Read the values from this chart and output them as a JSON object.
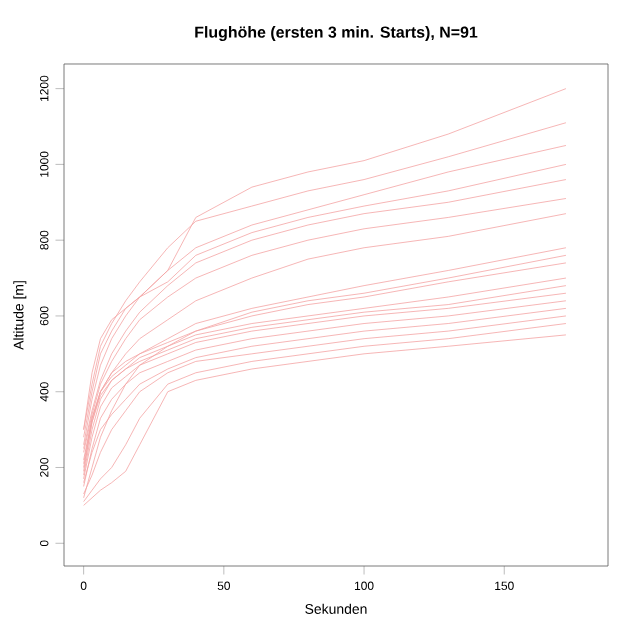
{
  "chart_data": {
    "type": "line",
    "title": "Flughöhe (ersten 3 min. Starts), N=91",
    "xlabel": "Sekunden",
    "ylabel": "Altitude [m]",
    "x": [
      0,
      3,
      6,
      10,
      15,
      20,
      30,
      40,
      60,
      80,
      100,
      130,
      172
    ],
    "xlim": [
      -7,
      187
    ],
    "ylim": [
      -60,
      1265
    ],
    "xticks": [
      0,
      50,
      100,
      150
    ],
    "yticks": [
      0,
      200,
      400,
      600,
      800,
      1000,
      1200
    ],
    "grid": false,
    "marker": "none",
    "line_style": "solid",
    "series": [
      {
        "color": "#f4a3a3",
        "values": [
          280,
          400,
          500,
          560,
          620,
          650,
          720,
          860,
          940,
          980,
          1010,
          1080,
          1200
        ]
      },
      {
        "color": "#f4a3a3",
        "values": [
          300,
          420,
          520,
          580,
          640,
          690,
          780,
          850,
          890,
          930,
          960,
          1020,
          1110
        ]
      },
      {
        "color": "#f4a3a3",
        "values": [
          260,
          380,
          470,
          540,
          600,
          650,
          720,
          780,
          840,
          880,
          920,
          980,
          1050
        ]
      },
      {
        "color": "#f4a3a3",
        "values": [
          250,
          350,
          430,
          500,
          560,
          610,
          680,
          740,
          800,
          840,
          870,
          900,
          960
        ]
      },
      {
        "color": "#f4a3a3",
        "values": [
          240,
          340,
          420,
          480,
          540,
          590,
          650,
          700,
          760,
          800,
          830,
          860,
          910
        ]
      },
      {
        "color": "#f4a3a3",
        "values": [
          220,
          330,
          400,
          450,
          500,
          540,
          590,
          640,
          700,
          750,
          780,
          810,
          870
        ]
      },
      {
        "color": "#f4a3a3",
        "values": [
          200,
          320,
          400,
          450,
          480,
          500,
          540,
          580,
          620,
          650,
          680,
          720,
          780
        ]
      },
      {
        "color": "#f4a3a3",
        "values": [
          210,
          330,
          400,
          440,
          470,
          500,
          530,
          560,
          600,
          630,
          650,
          690,
          740
        ]
      },
      {
        "color": "#f4a3a3",
        "values": [
          180,
          300,
          380,
          430,
          460,
          490,
          520,
          550,
          580,
          600,
          620,
          650,
          700
        ]
      },
      {
        "color": "#f4a3a3",
        "values": [
          190,
          320,
          390,
          430,
          460,
          480,
          510,
          540,
          570,
          590,
          610,
          630,
          680
        ]
      },
      {
        "color": "#f4a3a3",
        "values": [
          170,
          280,
          360,
          410,
          440,
          470,
          500,
          530,
          560,
          580,
          600,
          620,
          660
        ]
      },
      {
        "color": "#f4a3a3",
        "values": [
          150,
          250,
          330,
          380,
          420,
          450,
          480,
          510,
          540,
          560,
          580,
          600,
          640
        ]
      },
      {
        "color": "#f4a3a3",
        "values": [
          160,
          240,
          300,
          340,
          380,
          420,
          460,
          490,
          520,
          540,
          560,
          580,
          620
        ]
      },
      {
        "color": "#f4a3a3",
        "values": [
          130,
          180,
          240,
          300,
          350,
          400,
          450,
          480,
          500,
          520,
          540,
          560,
          600
        ]
      },
      {
        "color": "#f4a3a3",
        "values": [
          110,
          140,
          170,
          200,
          260,
          330,
          420,
          450,
          480,
          500,
          520,
          540,
          580
        ]
      },
      {
        "color": "#f4a3a3",
        "values": [
          100,
          120,
          140,
          160,
          190,
          260,
          400,
          430,
          460,
          480,
          500,
          520,
          550
        ]
      },
      {
        "color": "#f4a3a3",
        "values": [
          300,
          450,
          540,
          590,
          620,
          650,
          690,
          760,
          820,
          860,
          890,
          930,
          1000
        ]
      },
      {
        "color": "#f4a3a3",
        "values": [
          120,
          200,
          280,
          350,
          420,
          470,
          520,
          560,
          610,
          640,
          660,
          700,
          760
        ]
      }
    ]
  }
}
